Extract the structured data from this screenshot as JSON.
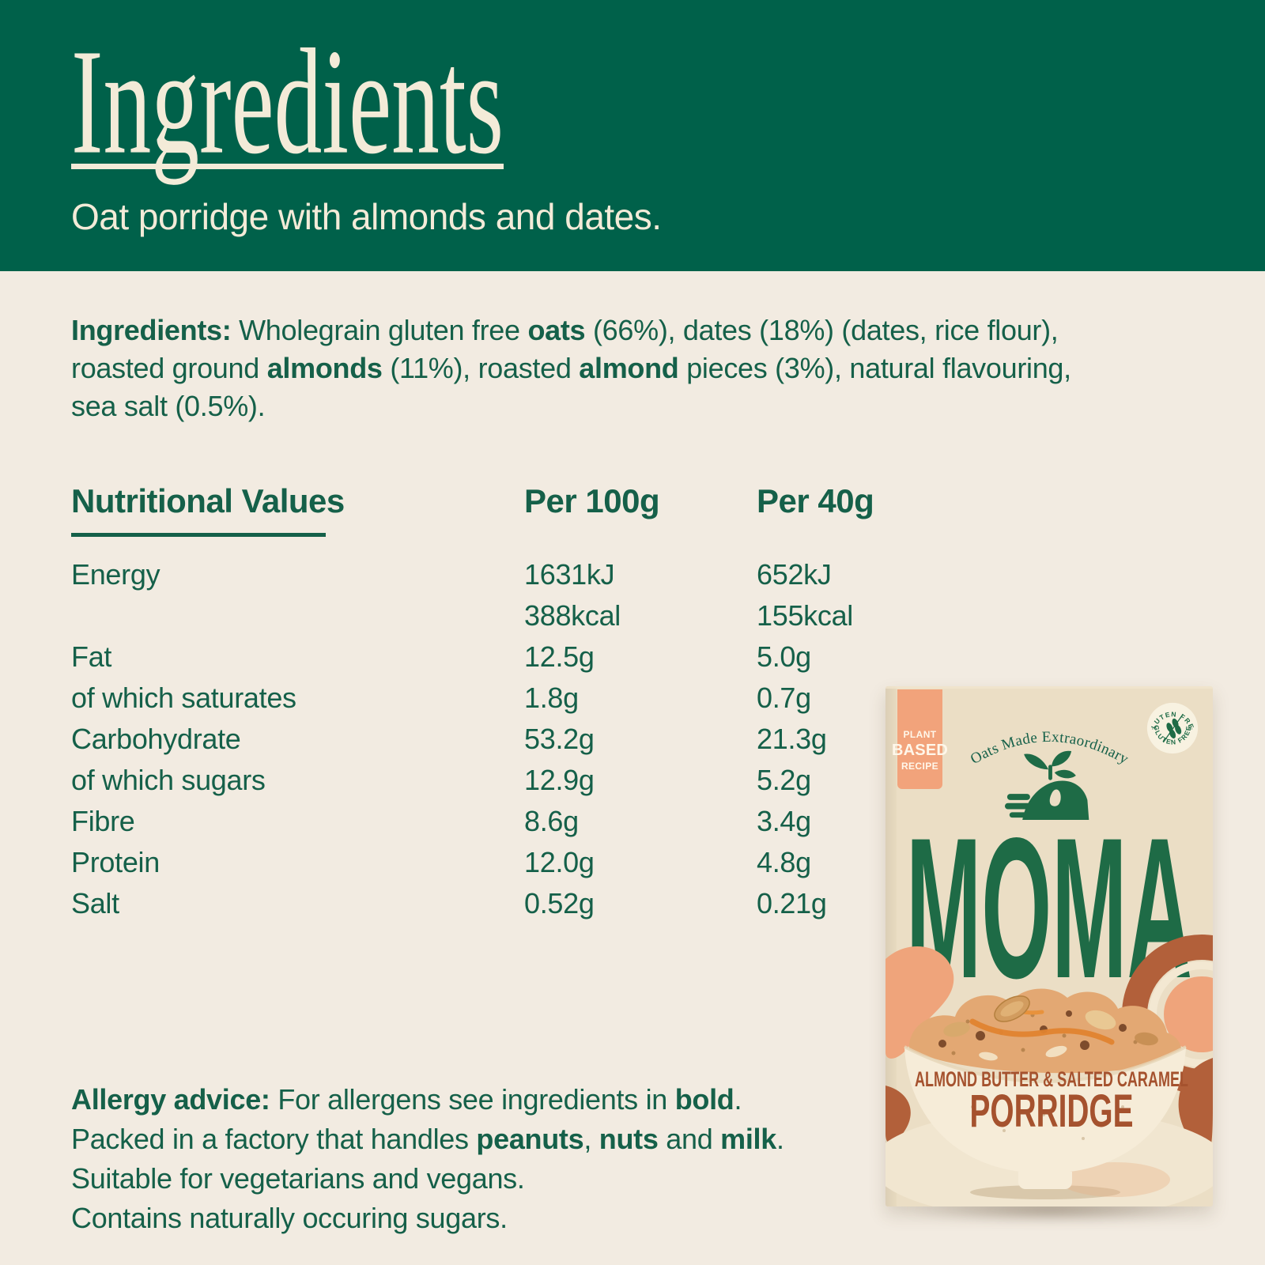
{
  "banner": {
    "title": "Ingredients",
    "subtitle": "Oat porridge with almonds and dates."
  },
  "ingredients_paragraph": {
    "lines": [
      [
        {
          "t": "Ingredients: ",
          "b": true
        },
        {
          "t": "Wholegrain gluten free ",
          "b": false
        },
        {
          "t": "oats",
          "b": true
        },
        {
          "t": " (66%), dates (18%) (dates, rice flour),",
          "b": false
        }
      ],
      [
        {
          "t": "roasted ground ",
          "b": false
        },
        {
          "t": "almonds",
          "b": true
        },
        {
          "t": " (11%), roasted ",
          "b": false
        },
        {
          "t": "almond",
          "b": true
        },
        {
          "t": " pieces (3%), natural flavouring,",
          "b": false
        }
      ],
      [
        {
          "t": "sea salt (0.5%).",
          "b": false
        }
      ]
    ]
  },
  "nutrition": {
    "heading": "Nutritional Values",
    "columns": [
      "Per 100g",
      "Per 40g"
    ],
    "rows": [
      {
        "label": "Energy",
        "per100": "1631kJ",
        "per40": "652kJ"
      },
      {
        "label": "",
        "per100": "388kcal",
        "per40": "155kcal"
      },
      {
        "label": "Fat",
        "per100": "12.5g",
        "per40": "5.0g"
      },
      {
        "label": "of which saturates",
        "per100": "1.8g",
        "per40": "0.7g"
      },
      {
        "label": "Carbohydrate",
        "per100": "53.2g",
        "per40": "21.3g"
      },
      {
        "label": "of which sugars",
        "per100": "12.9g",
        "per40": "5.2g"
      },
      {
        "label": "Fibre",
        "per100": "8.6g",
        "per40": "3.4g"
      },
      {
        "label": "Protein",
        "per100": "12.0g",
        "per40": "4.8g"
      },
      {
        "label": "Salt",
        "per100": "0.52g",
        "per40": "0.21g"
      }
    ]
  },
  "allergy": {
    "lines": [
      [
        {
          "t": "Allergy advice: ",
          "b": true
        },
        {
          "t": "For allergens see ingredients in ",
          "b": false
        },
        {
          "t": "bold",
          "b": true
        },
        {
          "t": ".",
          "b": false
        }
      ],
      [
        {
          "t": "Packed in a factory that handles ",
          "b": false
        },
        {
          "t": "peanuts",
          "b": true
        },
        {
          "t": ", ",
          "b": false
        },
        {
          "t": "nuts",
          "b": true
        },
        {
          "t": " and ",
          "b": false
        },
        {
          "t": "milk",
          "b": true
        },
        {
          "t": ".",
          "b": false
        }
      ],
      [
        {
          "t": "Suitable for vegetarians and vegans.",
          "b": false
        }
      ],
      [
        {
          "t": "Contains naturally occuring sugars.",
          "b": false
        }
      ]
    ]
  },
  "product_box": {
    "plant_badge": {
      "line1": "PLANT",
      "line2": "BASED",
      "line3": "RECIPE"
    },
    "tagline": "Oats Made Extraordinary",
    "gluten_badge": {
      "top": "GLUTEN FREE",
      "bottom": "GLUTEN FREE",
      "separator": "·"
    },
    "brand": "MOMA",
    "flavour": "ALMOND BUTTER & SALTED CARAMEL",
    "product_type": "PORRIDGE"
  },
  "colors": {
    "banner_green": "#00614A",
    "text_green": "#156049",
    "cream": "#F2EBE1",
    "box_cream": "#EBDEC5",
    "rust": "#A5522E",
    "salmon": "#F2A37B",
    "moma_green": "#1E6B46"
  }
}
